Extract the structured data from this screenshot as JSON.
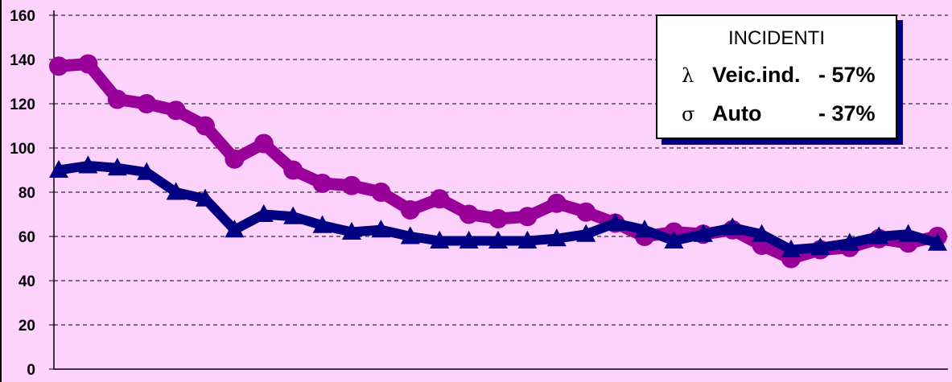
{
  "chart_data": {
    "type": "line",
    "title": "",
    "xlabel": "",
    "ylabel": "",
    "ylim": [
      0,
      160
    ],
    "yticks": [
      "0",
      "20",
      "40",
      "60",
      "80",
      "100",
      "120",
      "140",
      "160"
    ],
    "grid": true,
    "legend_position": "top-right",
    "series": [
      {
        "key": "veic",
        "color": "#990099",
        "marker": "circle",
        "values": [
          137,
          138,
          122,
          120,
          117,
          110,
          95,
          102,
          90,
          84,
          83,
          80,
          72,
          77,
          70,
          68,
          69,
          75,
          71,
          66,
          60,
          62,
          61,
          63,
          56,
          50,
          54,
          55,
          59,
          57,
          60
        ]
      },
      {
        "key": "auto",
        "color": "#000080",
        "marker": "triangle",
        "values": [
          90,
          92,
          91,
          89,
          80,
          77,
          63,
          70,
          69,
          65,
          62,
          63,
          60,
          58,
          58,
          58,
          58,
          59,
          61,
          66,
          63,
          58,
          61,
          64,
          61,
          54,
          55,
          57,
          60,
          61,
          57
        ]
      }
    ]
  },
  "legend": {
    "title": "INCIDENTI",
    "rows": [
      {
        "symbol": "λ",
        "name": "Veic.ind.",
        "value": "- 57%"
      },
      {
        "symbol": "σ",
        "name": "Auto",
        "value": "- 37%"
      }
    ]
  }
}
